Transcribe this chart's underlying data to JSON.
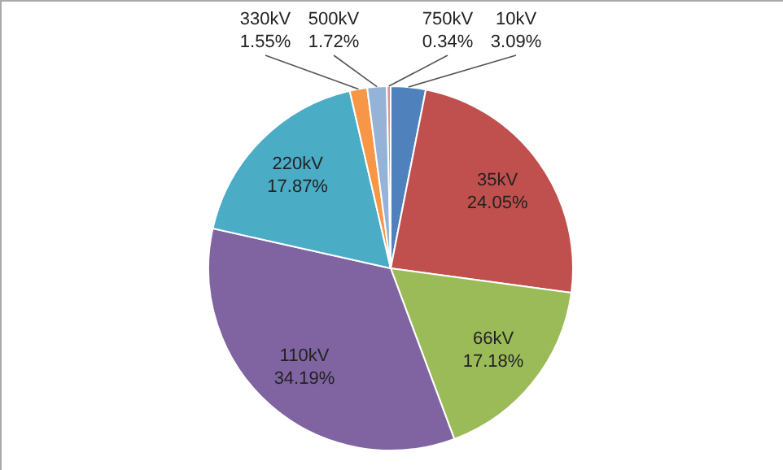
{
  "chart_data": {
    "type": "pie",
    "categories": [
      "10kV",
      "35kV",
      "66kV",
      "110kV",
      "220kV",
      "330kV",
      "500kV",
      "750kV"
    ],
    "values": [
      3.09,
      24.05,
      17.18,
      34.19,
      17.87,
      1.55,
      1.72,
      0.34
    ],
    "colors": [
      "#4f81bd",
      "#c0504d",
      "#9bbb59",
      "#8064a2",
      "#4bacc6",
      "#f79646",
      "#95b3d7",
      "#d99694"
    ],
    "value_labels": [
      "3.09%",
      "24.05%",
      "17.18%",
      "34.19%",
      "17.87%",
      "1.55%",
      "1.72%",
      "0.34%"
    ]
  }
}
